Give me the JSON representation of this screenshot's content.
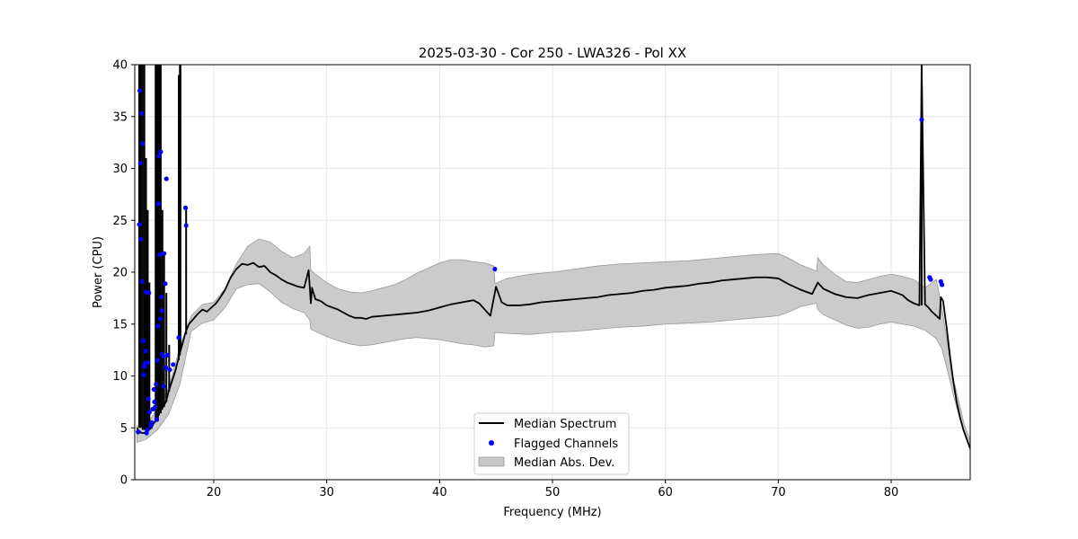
{
  "chart_data": {
    "type": "line",
    "title": "2025-03-30 - Cor 250 - LWA326 - Pol XX",
    "xlabel": "Frequency (MHz)",
    "ylabel": "Power (CPU)",
    "xlim": [
      13,
      87
    ],
    "ylim": [
      0,
      40
    ],
    "xticks": [
      20,
      30,
      40,
      50,
      60,
      70,
      80
    ],
    "yticks": [
      0,
      5,
      10,
      15,
      20,
      25,
      30,
      35,
      40
    ],
    "grid": true,
    "legend_position": "bottom-center",
    "legend": [
      "Median Spectrum",
      "Flagged Channels",
      "Median Abs. Dev."
    ],
    "colors": {
      "median": "#000000",
      "flagged": "#0000ff",
      "mad_fill": "#c8c8c8",
      "mad_edge": "#999999",
      "grid": "#e6e6e6"
    },
    "series": [
      {
        "name": "Median Spectrum",
        "kind": "line",
        "x": [
          13.2,
          13.3,
          13.5,
          13.6,
          13.8,
          14.0,
          14.2,
          14.5,
          14.6,
          14.8,
          15.0,
          15.2,
          15.5,
          15.8,
          16.0,
          16.3,
          16.6,
          16.9,
          17.2,
          17.5,
          17.8,
          18.2,
          18.6,
          19.0,
          19.4,
          19.8,
          20.2,
          20.6,
          21.0,
          21.5,
          22.0,
          22.5,
          23.0,
          23.5,
          24.0,
          24.5,
          25.0,
          25.5,
          26.0,
          26.5,
          27.0,
          27.5,
          28.0,
          28.4,
          28.6,
          28.7,
          29.0,
          29.5,
          30.0,
          30.5,
          31.0,
          31.5,
          32.0,
          32.5,
          33.0,
          33.5,
          34.0,
          35.0,
          36.0,
          37.0,
          38.0,
          39.0,
          40.0,
          41.0,
          42.0,
          43.0,
          43.5,
          44.0,
          44.5,
          45.0,
          45.5,
          46.0,
          47.0,
          48.0,
          49.0,
          50.0,
          51.0,
          52.0,
          53.0,
          54.0,
          55.0,
          56.0,
          57.0,
          58.0,
          59.0,
          60.0,
          61.0,
          62.0,
          63.0,
          64.0,
          65.0,
          66.0,
          67.0,
          68.0,
          69.0,
          70.0,
          71.0,
          72.0,
          73.0,
          73.5,
          74.0,
          75.0,
          76.0,
          77.0,
          78.0,
          79.0,
          80.0,
          81.0,
          81.5,
          82.0,
          82.5,
          82.7,
          83.0,
          83.3,
          83.6,
          84.0,
          84.3,
          84.4,
          84.6,
          84.9,
          85.2,
          85.5,
          85.8,
          86.1,
          86.4,
          86.7,
          87.0
        ],
        "y": [
          5.0,
          4.8,
          4.6,
          4.5,
          4.5,
          4.6,
          4.8,
          5.0,
          5.3,
          5.6,
          6.0,
          6.5,
          7.0,
          7.6,
          8.5,
          9.5,
          10.5,
          11.8,
          13.0,
          14.2,
          15.0,
          15.5,
          16.0,
          16.4,
          16.2,
          16.6,
          17.0,
          17.6,
          18.3,
          19.5,
          20.3,
          20.8,
          20.7,
          20.9,
          20.5,
          20.6,
          20.0,
          19.7,
          19.3,
          19.0,
          18.8,
          18.6,
          18.5,
          20.2,
          17.0,
          18.5,
          17.4,
          17.2,
          16.8,
          16.6,
          16.4,
          16.1,
          15.8,
          15.6,
          15.6,
          15.5,
          15.7,
          15.8,
          15.9,
          16.0,
          16.1,
          16.3,
          16.6,
          16.9,
          17.1,
          17.3,
          17.0,
          16.4,
          15.8,
          18.6,
          17.1,
          16.8,
          16.8,
          16.9,
          17.1,
          17.2,
          17.3,
          17.4,
          17.5,
          17.6,
          17.8,
          17.9,
          18.0,
          18.2,
          18.3,
          18.5,
          18.6,
          18.7,
          18.9,
          19.0,
          19.2,
          19.3,
          19.4,
          19.5,
          19.5,
          19.4,
          18.8,
          18.3,
          17.9,
          19.0,
          18.4,
          17.9,
          17.6,
          17.5,
          17.8,
          18.0,
          18.2,
          17.8,
          17.3,
          17.0,
          16.8,
          40.0,
          16.9,
          16.6,
          16.2,
          15.8,
          15.5,
          17.6,
          17.2,
          14.8,
          12.0,
          9.5,
          7.5,
          6.0,
          4.8,
          3.9,
          3.0
        ]
      },
      {
        "name": "Median Abs. Dev.",
        "kind": "band",
        "x": [
          13.2,
          14.0,
          15.0,
          16.0,
          17.0,
          18.0,
          19.0,
          20.0,
          21.0,
          22.0,
          23.0,
          24.0,
          25.0,
          26.0,
          27.0,
          28.0,
          28.5,
          28.6,
          29.0,
          30.0,
          31.0,
          32.0,
          33.0,
          34.0,
          35.0,
          36.0,
          37.0,
          38.0,
          39.0,
          40.0,
          41.0,
          42.0,
          43.0,
          44.0,
          44.8,
          44.9,
          46.0,
          48.0,
          50.0,
          52.0,
          54.0,
          56.0,
          58.0,
          60.0,
          62.0,
          64.0,
          66.0,
          68.0,
          70.0,
          71.0,
          72.0,
          73.4,
          73.5,
          74.0,
          75.0,
          76.0,
          77.0,
          78.0,
          79.0,
          80.0,
          81.0,
          82.0,
          83.0,
          84.0,
          84.5,
          85.0,
          85.5,
          86.0,
          86.5,
          87.0
        ],
        "upper": [
          5.2,
          5.2,
          6.8,
          8.8,
          12.8,
          15.8,
          16.9,
          17.1,
          18.4,
          20.8,
          22.5,
          23.2,
          22.9,
          22.0,
          21.4,
          21.8,
          22.5,
          20.2,
          19.8,
          19.0,
          18.4,
          18.1,
          18.0,
          18.2,
          18.5,
          18.8,
          19.3,
          19.9,
          20.4,
          20.9,
          21.2,
          21.2,
          21.0,
          20.9,
          20.6,
          18.9,
          19.4,
          19.8,
          20.0,
          20.3,
          20.6,
          20.8,
          20.9,
          21.0,
          21.1,
          21.3,
          21.5,
          21.7,
          21.8,
          21.3,
          20.7,
          20.1,
          21.4,
          20.7,
          19.8,
          19.1,
          19.0,
          19.3,
          19.6,
          19.8,
          19.6,
          19.3,
          18.5,
          19.3,
          16.5,
          13.0,
          9.8,
          7.5,
          5.2,
          3.8
        ],
        "lower": [
          3.6,
          3.9,
          4.8,
          6.3,
          9.2,
          14.3,
          15.1,
          15.4,
          16.6,
          18.4,
          18.8,
          18.9,
          18.1,
          17.1,
          16.5,
          16.1,
          15.4,
          14.5,
          14.3,
          13.8,
          13.4,
          13.1,
          12.9,
          13.0,
          13.2,
          13.4,
          13.6,
          13.7,
          13.6,
          13.5,
          13.3,
          13.1,
          13.0,
          12.8,
          12.9,
          14.2,
          14.1,
          14.0,
          14.2,
          14.3,
          14.5,
          14.7,
          14.8,
          15.0,
          15.1,
          15.2,
          15.4,
          15.6,
          15.8,
          16.2,
          16.7,
          17.0,
          16.4,
          15.9,
          15.4,
          14.9,
          14.6,
          14.7,
          15.0,
          15.2,
          15.0,
          14.8,
          14.4,
          13.6,
          12.6,
          10.5,
          8.2,
          6.2,
          4.6,
          3.0
        ]
      },
      {
        "name": "Flagged Channels",
        "kind": "scatter",
        "x": [
          13.3,
          13.45,
          13.5,
          13.6,
          13.7,
          13.75,
          13.8,
          13.85,
          13.9,
          14.0,
          14.05,
          14.1,
          14.15,
          14.2,
          14.25,
          13.55,
          13.65,
          13.95,
          14.3,
          14.4,
          14.5,
          14.6,
          14.7,
          14.8,
          14.9,
          15.0,
          15.05,
          15.1,
          15.15,
          15.2,
          15.25,
          15.3,
          15.35,
          15.4,
          15.45,
          15.5,
          15.6,
          15.7,
          15.75,
          15.8,
          15.9,
          16.1,
          16.4,
          16.9,
          17.5,
          17.55,
          13.4,
          14.95,
          15.55,
          14.75,
          44.9,
          82.7,
          83.4,
          83.5,
          84.4,
          84.5
        ],
        "y": [
          4.6,
          37.5,
          30.5,
          35.3,
          32.4,
          13.4,
          10.1,
          10.9,
          11.2,
          18.1,
          4.5,
          4.8,
          11.3,
          7.8,
          18.0,
          23.2,
          19.1,
          12.4,
          6.5,
          5.2,
          5.5,
          6.8,
          8.7,
          7.0,
          9.2,
          11.5,
          14.8,
          26.6,
          31.2,
          21.7,
          15.5,
          31.6,
          17.6,
          16.3,
          12.1,
          11.9,
          21.8,
          18.9,
          10.8,
          29.0,
          12.0,
          10.6,
          11.1,
          13.7,
          26.2,
          24.5,
          24.6,
          5.8,
          9.0,
          7.5,
          20.3,
          34.7,
          19.5,
          19.3,
          19.1,
          18.8
        ]
      }
    ],
    "rfi_spikes": [
      {
        "x": 13.4,
        "y_low": 5.0,
        "y_high": 40.0
      },
      {
        "x": 13.55,
        "y_low": 5.0,
        "y_high": 40.0
      },
      {
        "x": 13.7,
        "y_low": 4.8,
        "y_high": 40.0
      },
      {
        "x": 13.85,
        "y_low": 4.8,
        "y_high": 40.0
      },
      {
        "x": 14.0,
        "y_low": 4.7,
        "y_high": 31.0
      },
      {
        "x": 14.15,
        "y_low": 4.8,
        "y_high": 26.0
      },
      {
        "x": 14.3,
        "y_low": 4.8,
        "y_high": 19.0
      },
      {
        "x": 14.85,
        "y_low": 5.6,
        "y_high": 40.0
      },
      {
        "x": 14.95,
        "y_low": 5.8,
        "y_high": 40.0
      },
      {
        "x": 15.05,
        "y_low": 5.9,
        "y_high": 40.0
      },
      {
        "x": 15.15,
        "y_low": 6.2,
        "y_high": 40.0
      },
      {
        "x": 15.3,
        "y_low": 6.4,
        "y_high": 40.0
      },
      {
        "x": 15.45,
        "y_low": 6.8,
        "y_high": 26.0
      },
      {
        "x": 15.6,
        "y_low": 7.0,
        "y_high": 22.0
      },
      {
        "x": 15.8,
        "y_low": 7.5,
        "y_high": 18.0
      },
      {
        "x": 16.05,
        "y_low": 8.5,
        "y_high": 13.0
      },
      {
        "x": 16.9,
        "y_low": 11.5,
        "y_high": 39.0
      },
      {
        "x": 17.0,
        "y_low": 12.0,
        "y_high": 40.0
      },
      {
        "x": 17.05,
        "y_low": 12.5,
        "y_high": 40.0
      },
      {
        "x": 17.55,
        "y_low": 14.0,
        "y_high": 26.0
      },
      {
        "x": 82.7,
        "y_low": 16.8,
        "y_high": 40.0
      }
    ]
  }
}
